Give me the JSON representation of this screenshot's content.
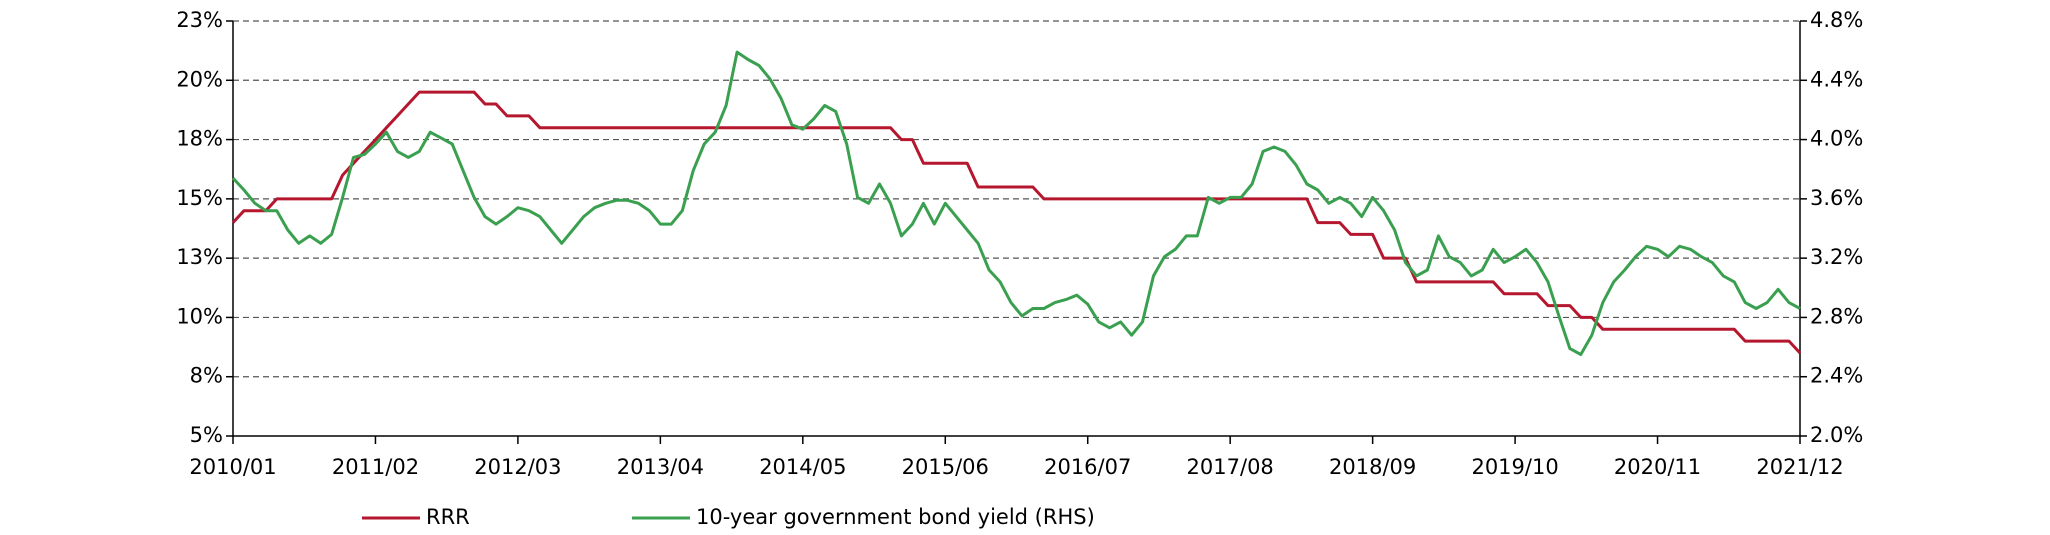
{
  "chart_data": {
    "type": "line",
    "x": [
      "2010/01",
      "2010/02",
      "2010/03",
      "2010/04",
      "2010/05",
      "2010/06",
      "2010/07",
      "2010/08",
      "2010/09",
      "2010/10",
      "2010/11",
      "2010/12",
      "2011/01",
      "2011/02",
      "2011/03",
      "2011/04",
      "2011/05",
      "2011/06",
      "2011/07",
      "2011/08",
      "2011/09",
      "2011/10",
      "2011/11",
      "2011/12",
      "2012/01",
      "2012/02",
      "2012/03",
      "2012/04",
      "2012/05",
      "2012/06",
      "2012/07",
      "2012/08",
      "2012/09",
      "2012/10",
      "2012/11",
      "2012/12",
      "2013/01",
      "2013/02",
      "2013/03",
      "2013/04",
      "2013/05",
      "2013/06",
      "2013/07",
      "2013/08",
      "2013/09",
      "2013/10",
      "2013/11",
      "2013/12",
      "2014/01",
      "2014/02",
      "2014/03",
      "2014/04",
      "2014/05",
      "2014/06",
      "2014/07",
      "2014/08",
      "2014/09",
      "2014/10",
      "2014/11",
      "2014/12",
      "2015/01",
      "2015/02",
      "2015/03",
      "2015/04",
      "2015/05",
      "2015/06",
      "2015/07",
      "2015/08",
      "2015/09",
      "2015/10",
      "2015/11",
      "2015/12",
      "2016/01",
      "2016/02",
      "2016/03",
      "2016/04",
      "2016/05",
      "2016/06",
      "2016/07",
      "2016/08",
      "2016/09",
      "2016/10",
      "2016/11",
      "2016/12",
      "2017/01",
      "2017/02",
      "2017/03",
      "2017/04",
      "2017/05",
      "2017/06",
      "2017/07",
      "2017/08",
      "2017/09",
      "2017/10",
      "2017/11",
      "2017/12",
      "2018/01",
      "2018/02",
      "2018/03",
      "2018/04",
      "2018/05",
      "2018/06",
      "2018/07",
      "2018/08",
      "2018/09",
      "2018/10",
      "2018/11",
      "2018/12",
      "2019/01",
      "2019/02",
      "2019/03",
      "2019/04",
      "2019/05",
      "2019/06",
      "2019/07",
      "2019/08",
      "2019/09",
      "2019/10",
      "2019/11",
      "2019/12",
      "2020/01",
      "2020/02",
      "2020/03",
      "2020/04",
      "2020/05",
      "2020/06",
      "2020/07",
      "2020/08",
      "2020/09",
      "2020/10",
      "2020/11",
      "2020/12",
      "2021/01",
      "2021/02",
      "2021/03",
      "2021/04",
      "2021/05",
      "2021/06",
      "2021/07",
      "2021/08",
      "2021/09",
      "2021/10",
      "2021/11",
      "2021/12"
    ],
    "xticks": [
      "2010/01",
      "2011/02",
      "2012/03",
      "2013/04",
      "2014/05",
      "2015/06",
      "2016/07",
      "2017/08",
      "2018/09",
      "2019/10",
      "2020/11",
      "2021/12"
    ],
    "ylim": [
      5,
      22.5
    ],
    "yticks": [
      {
        "value": 5,
        "label": "5%"
      },
      {
        "value": 7.5,
        "label": "8%"
      },
      {
        "value": 10,
        "label": "10%"
      },
      {
        "value": 12.5,
        "label": "13%"
      },
      {
        "value": 15,
        "label": "15%"
      },
      {
        "value": 17.5,
        "label": "18%"
      },
      {
        "value": 20,
        "label": "20%"
      },
      {
        "value": 22.5,
        "label": "23%"
      }
    ],
    "y2lim": [
      2.0,
      4.8
    ],
    "y2ticks": [
      {
        "value": 2.0,
        "label": "2.0%"
      },
      {
        "value": 2.4,
        "label": "2.4%"
      },
      {
        "value": 2.8,
        "label": "2.8%"
      },
      {
        "value": 3.2,
        "label": "3.2%"
      },
      {
        "value": 3.6,
        "label": "3.6%"
      },
      {
        "value": 4.0,
        "label": "4.0%"
      },
      {
        "value": 4.4,
        "label": "4.4%"
      },
      {
        "value": 4.8,
        "label": "4.8%"
      }
    ],
    "grid": true,
    "legend": "bottom",
    "series": [
      {
        "name": "RRR",
        "color": "#b5172f",
        "values": [
          14.0,
          14.5,
          14.5,
          14.5,
          15.0,
          15.0,
          15.0,
          15.0,
          15.0,
          15.0,
          16.0,
          16.5,
          17.0,
          17.5,
          18.0,
          18.5,
          19.0,
          19.5,
          19.5,
          19.5,
          19.5,
          19.5,
          19.5,
          19.0,
          19.0,
          18.5,
          18.5,
          18.5,
          18.0,
          18.0,
          18.0,
          18.0,
          18.0,
          18.0,
          18.0,
          18.0,
          18.0,
          18.0,
          18.0,
          18.0,
          18.0,
          18.0,
          18.0,
          18.0,
          18.0,
          18.0,
          18.0,
          18.0,
          18.0,
          18.0,
          18.0,
          18.0,
          18.0,
          18.0,
          18.0,
          18.0,
          18.0,
          18.0,
          18.0,
          18.0,
          18.0,
          17.5,
          17.5,
          16.5,
          16.5,
          16.5,
          16.5,
          16.5,
          15.5,
          15.5,
          15.5,
          15.5,
          15.5,
          15.5,
          15.0,
          15.0,
          15.0,
          15.0,
          15.0,
          15.0,
          15.0,
          15.0,
          15.0,
          15.0,
          15.0,
          15.0,
          15.0,
          15.0,
          15.0,
          15.0,
          15.0,
          15.0,
          15.0,
          15.0,
          15.0,
          15.0,
          15.0,
          15.0,
          15.0,
          14.0,
          14.0,
          14.0,
          13.5,
          13.5,
          13.5,
          12.5,
          12.5,
          12.5,
          11.5,
          11.5,
          11.5,
          11.5,
          11.5,
          11.5,
          11.5,
          11.5,
          11.0,
          11.0,
          11.0,
          11.0,
          10.5,
          10.5,
          10.5,
          10.0,
          10.0,
          9.5,
          9.5,
          9.5,
          9.5,
          9.5,
          9.5,
          9.5,
          9.5,
          9.5,
          9.5,
          9.5,
          9.5,
          9.5,
          9.0,
          9.0,
          9.0,
          9.0,
          9.0,
          8.5
        ]
      },
      {
        "name": "10-year government bond yield (RHS)",
        "color": "#3aa050",
        "axis": "y2",
        "values": [
          3.74,
          3.66,
          3.57,
          3.52,
          3.52,
          3.39,
          3.3,
          3.35,
          3.3,
          3.36,
          3.61,
          3.88,
          3.9,
          3.97,
          4.05,
          3.92,
          3.88,
          3.92,
          4.05,
          4.01,
          3.97,
          3.79,
          3.61,
          3.48,
          3.43,
          3.48,
          3.54,
          3.52,
          3.48,
          3.39,
          3.3,
          3.39,
          3.48,
          3.54,
          3.57,
          3.59,
          3.59,
          3.57,
          3.52,
          3.43,
          3.43,
          3.52,
          3.79,
          3.97,
          4.05,
          4.23,
          4.59,
          4.54,
          4.5,
          4.41,
          4.28,
          4.1,
          4.07,
          4.14,
          4.23,
          4.19,
          3.97,
          3.61,
          3.57,
          3.7,
          3.57,
          3.35,
          3.43,
          3.57,
          3.43,
          3.57,
          3.48,
          3.39,
          3.3,
          3.12,
          3.04,
          2.9,
          2.81,
          2.86,
          2.86,
          2.9,
          2.92,
          2.95,
          2.89,
          2.77,
          2.73,
          2.77,
          2.68,
          2.77,
          3.08,
          3.21,
          3.26,
          3.35,
          3.35,
          3.61,
          3.57,
          3.61,
          3.61,
          3.7,
          3.92,
          3.95,
          3.92,
          3.83,
          3.7,
          3.66,
          3.57,
          3.61,
          3.57,
          3.48,
          3.61,
          3.52,
          3.39,
          3.17,
          3.08,
          3.12,
          3.35,
          3.21,
          3.17,
          3.08,
          3.12,
          3.26,
          3.17,
          3.21,
          3.26,
          3.17,
          3.04,
          2.81,
          2.59,
          2.55,
          2.68,
          2.9,
          3.04,
          3.12,
          3.21,
          3.28,
          3.26,
          3.21,
          3.28,
          3.26,
          3.21,
          3.17,
          3.08,
          3.04,
          2.9,
          2.86,
          2.9,
          2.99,
          2.9,
          2.86
        ]
      }
    ]
  }
}
